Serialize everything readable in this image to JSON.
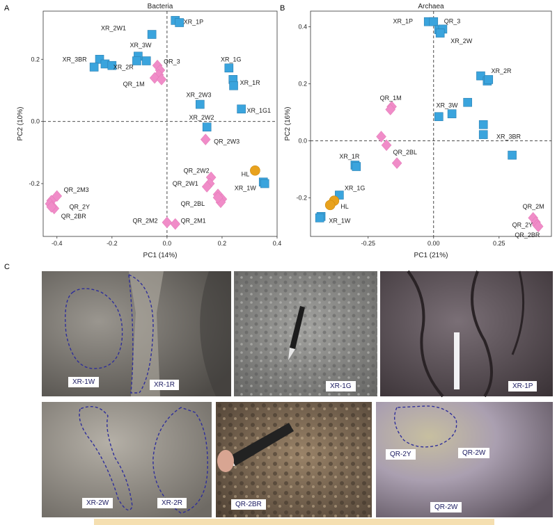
{
  "panels": {
    "a": "A",
    "b": "B",
    "c": "C"
  },
  "chart_data": [
    {
      "type": "scatter",
      "title": "Bacteria",
      "xlabel": "PC1 (14%)",
      "ylabel": "PC2 (10%)",
      "xlim": [
        -0.45,
        0.4
      ],
      "ylim": [
        -0.37,
        0.355
      ],
      "xticks": [
        -0.4,
        -0.2,
        0.0,
        0.2,
        0.4
      ],
      "xtick_labels": [
        "-0.4",
        "-0.2",
        "0.0",
        "0.2",
        "0.4"
      ],
      "yticks": [
        -0.2,
        0.0,
        0.2
      ],
      "ytick_labels": [
        "-0.2",
        "0.0",
        "0.2"
      ],
      "grid": false,
      "reference_lines": {
        "x": 0,
        "y": 0
      },
      "series": [
        {
          "marker": "square",
          "color": "#3aa4dd",
          "points": [
            [
              0.03,
              0.325
            ],
            [
              0.045,
              0.318
            ],
            [
              -0.055,
              0.28
            ],
            [
              -0.105,
              0.21
            ],
            [
              -0.075,
              0.195
            ],
            [
              -0.245,
              0.2
            ],
            [
              -0.225,
              0.185
            ],
            [
              -0.265,
              0.175
            ],
            [
              -0.2,
              0.18
            ],
            [
              -0.11,
              0.195
            ],
            [
              0.225,
              0.172
            ],
            [
              0.24,
              0.135
            ],
            [
              0.242,
              0.115
            ],
            [
              0.12,
              0.055
            ],
            [
              0.27,
              0.04
            ],
            [
              0.145,
              -0.018
            ],
            [
              0.35,
              -0.195
            ],
            [
              0.355,
              -0.2
            ]
          ]
        },
        {
          "marker": "diamond",
          "color": "#f08cc8",
          "points": [
            [
              -0.035,
              0.18
            ],
            [
              -0.025,
              0.165
            ],
            [
              -0.03,
              0.15
            ],
            [
              -0.045,
              0.14
            ],
            [
              -0.02,
              0.135
            ],
            [
              0.14,
              -0.058
            ],
            [
              0.16,
              -0.18
            ],
            [
              0.155,
              -0.2
            ],
            [
              0.145,
              -0.21
            ],
            [
              0.185,
              -0.235
            ],
            [
              0.2,
              -0.25
            ],
            [
              0.195,
              -0.26
            ],
            [
              0.185,
              -0.245
            ],
            [
              -0.4,
              -0.24
            ],
            [
              -0.42,
              -0.255
            ],
            [
              -0.425,
              -0.265
            ],
            [
              -0.41,
              -0.28
            ],
            [
              -0.42,
              -0.275
            ],
            [
              0.0,
              -0.325
            ],
            [
              0.03,
              -0.33
            ]
          ]
        },
        {
          "marker": "circle",
          "color": "#e8a21e",
          "points": [
            [
              0.32,
              -0.158
            ]
          ]
        }
      ],
      "annotations": [
        {
          "text": "XR_1P",
          "x": 0.06,
          "y": 0.32
        },
        {
          "text": "XR_2W1",
          "x": -0.24,
          "y": 0.3
        },
        {
          "text": "XR_3W",
          "x": -0.135,
          "y": 0.245
        },
        {
          "text": "XR_3BR",
          "x": -0.38,
          "y": 0.2
        },
        {
          "text": "XR_2R",
          "x": -0.195,
          "y": 0.175
        },
        {
          "text": "QR_3",
          "x": -0.012,
          "y": 0.193
        },
        {
          "text": "QR_1M",
          "x": -0.16,
          "y": 0.12
        },
        {
          "text": "XR_1G",
          "x": 0.195,
          "y": 0.2
        },
        {
          "text": "XR_1R",
          "x": 0.265,
          "y": 0.125
        },
        {
          "text": "XR_2W3",
          "x": 0.07,
          "y": 0.085
        },
        {
          "text": "XR_1G1",
          "x": 0.29,
          "y": 0.035
        },
        {
          "text": "XR_2W2",
          "x": 0.08,
          "y": 0.013
        },
        {
          "text": "QR_2W3",
          "x": 0.17,
          "y": -0.065
        },
        {
          "text": "QR_2W2",
          "x": 0.06,
          "y": -0.158
        },
        {
          "text": "HL",
          "x": 0.27,
          "y": -0.17
        },
        {
          "text": "QR_2W1",
          "x": 0.02,
          "y": -0.2
        },
        {
          "text": "XR_1W",
          "x": 0.245,
          "y": -0.215
        },
        {
          "text": "QR_2BL",
          "x": 0.05,
          "y": -0.265
        },
        {
          "text": "QR_2M3",
          "x": -0.375,
          "y": -0.22
        },
        {
          "text": "QR_2Y",
          "x": -0.355,
          "y": -0.275
        },
        {
          "text": "QR_2BR",
          "x": -0.385,
          "y": -0.305
        },
        {
          "text": "QR_2M2",
          "x": -0.125,
          "y": -0.32
        },
        {
          "text": "QR_2M1",
          "x": 0.05,
          "y": -0.32
        }
      ]
    },
    {
      "type": "scatter",
      "title": "Archaea",
      "xlabel": "PC1 (21%)",
      "ylabel": "PC2 (16%)",
      "xlim": [
        -0.47,
        0.45
      ],
      "ylim": [
        -0.335,
        0.455
      ],
      "xticks": [
        -0.25,
        0.0,
        0.25
      ],
      "xtick_labels": [
        "-0.25",
        "0.00",
        "0.25"
      ],
      "yticks": [
        -0.2,
        0.0,
        0.2,
        0.4
      ],
      "ytick_labels": [
        "-0.2",
        "0.0",
        "0.2",
        "0.4"
      ],
      "grid": false,
      "reference_lines": {
        "x": 0,
        "y": 0
      },
      "series": [
        {
          "marker": "square",
          "color": "#3aa4dd",
          "points": [
            [
              -0.02,
              0.418
            ],
            [
              0.0,
              0.418
            ],
            [
              0.02,
              0.39
            ],
            [
              0.035,
              0.392
            ],
            [
              0.025,
              0.378
            ],
            [
              0.18,
              0.228
            ],
            [
              0.205,
              0.21
            ],
            [
              0.21,
              0.215
            ],
            [
              0.13,
              0.135
            ],
            [
              0.07,
              0.095
            ],
            [
              0.02,
              0.085
            ],
            [
              0.19,
              0.057
            ],
            [
              0.19,
              0.022
            ],
            [
              0.3,
              -0.05
            ],
            [
              -0.3,
              -0.085
            ],
            [
              -0.295,
              -0.09
            ],
            [
              -0.36,
              -0.19
            ],
            [
              -0.43,
              -0.265
            ],
            [
              -0.435,
              -0.27
            ]
          ]
        },
        {
          "marker": "diamond",
          "color": "#f08cc8",
          "points": [
            [
              -0.16,
              0.12
            ],
            [
              -0.165,
              0.11
            ],
            [
              -0.2,
              0.015
            ],
            [
              -0.18,
              -0.015
            ],
            [
              -0.14,
              -0.078
            ],
            [
              0.38,
              -0.27
            ],
            [
              0.39,
              -0.285
            ],
            [
              0.395,
              -0.295
            ],
            [
              0.4,
              -0.3
            ]
          ]
        },
        {
          "marker": "circle",
          "color": "#e8a21e",
          "points": [
            [
              -0.38,
              -0.21
            ],
            [
              -0.395,
              -0.225
            ]
          ]
        }
      ],
      "annotations": [
        {
          "text": "XR_1P",
          "x": -0.155,
          "y": 0.42
        },
        {
          "text": "QR_3",
          "x": 0.04,
          "y": 0.42
        },
        {
          "text": "XR_2W",
          "x": 0.065,
          "y": 0.35
        },
        {
          "text": "XR_2R",
          "x": 0.22,
          "y": 0.245
        },
        {
          "text": "QR_1M",
          "x": -0.205,
          "y": 0.15
        },
        {
          "text": "XR_3W",
          "x": 0.01,
          "y": 0.125
        },
        {
          "text": "XR_3BR",
          "x": 0.24,
          "y": 0.015
        },
        {
          "text": "QR_2BL",
          "x": -0.155,
          "y": -0.04
        },
        {
          "text": "XR_1R",
          "x": -0.36,
          "y": -0.055
        },
        {
          "text": "XR_1G",
          "x": -0.34,
          "y": -0.165
        },
        {
          "text": "HL",
          "x": -0.355,
          "y": -0.23
        },
        {
          "text": "XR_1W",
          "x": -0.4,
          "y": -0.28
        },
        {
          "text": "QR_2M",
          "x": 0.34,
          "y": -0.23
        },
        {
          "text": "QR_2Y",
          "x": 0.3,
          "y": -0.295
        },
        {
          "text": "QR_2BR",
          "x": 0.31,
          "y": -0.33
        }
      ]
    }
  ],
  "photos": [
    {
      "labels": [
        "XR-1W",
        "XR-1R"
      ]
    },
    {
      "labels": [
        "XR-1G"
      ]
    },
    {
      "labels": [
        "XR-1P"
      ]
    },
    {
      "labels": [
        "XR-2W",
        "XR-2R"
      ]
    },
    {
      "labels": [
        "QR-2BR"
      ]
    },
    {
      "labels": [
        "QR-2Y",
        "QR-2W",
        "QR-2W"
      ]
    }
  ]
}
